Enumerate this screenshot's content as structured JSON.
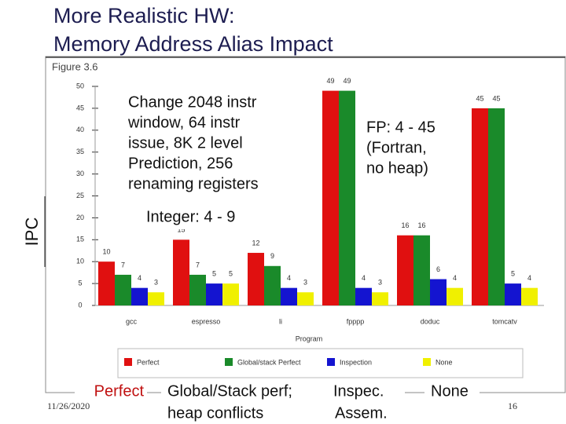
{
  "slide": {
    "title": [
      "More Realistic HW:",
      "Memory Address Alias Impact"
    ],
    "figure": "Figure 3.6",
    "note": [
      "Change  2048 instr",
      "window, 64 instr",
      "issue, 8K 2 level",
      "Prediction, 256",
      "renaming registers"
    ],
    "integer_note": "Integer: 4 - 9",
    "fp_note": [
      "FP: 4 - 45",
      "(Fortran,",
      "no heap)"
    ],
    "bottom_perfect": "Perfect",
    "bottom_global": [
      "Global/Stack perf;",
      "heap conflicts"
    ],
    "bottom_inspec": [
      "Inspec.",
      "Assem."
    ],
    "bottom_none": "None",
    "date": "11/26/2020",
    "page": "16"
  },
  "chart_data": {
    "type": "bar",
    "y_label": "IPC",
    "x_label": "Program",
    "categories": [
      "gcc",
      "espresso",
      "li",
      "fpppp",
      "doduc",
      "tomcatv"
    ],
    "series": [
      {
        "name": "Perfect",
        "color": "#e01010",
        "values": [
          10,
          15,
          12,
          49,
          16,
          45
        ]
      },
      {
        "name": "Global/stack Perfect",
        "color": "#1a8a2a",
        "values": [
          7,
          7,
          9,
          49,
          16,
          45
        ]
      },
      {
        "name": "Inspection",
        "color": "#1414d0",
        "values": [
          4,
          5,
          4,
          4,
          6,
          5
        ]
      },
      {
        "name": "None",
        "color": "#f0f000",
        "values": [
          3,
          5,
          3,
          3,
          4,
          4
        ]
      }
    ],
    "ylim": [
      0,
      50
    ],
    "yticks": [
      0,
      5,
      10,
      15,
      20,
      25,
      30,
      35,
      40,
      45,
      50
    ],
    "legend": "bottom"
  }
}
